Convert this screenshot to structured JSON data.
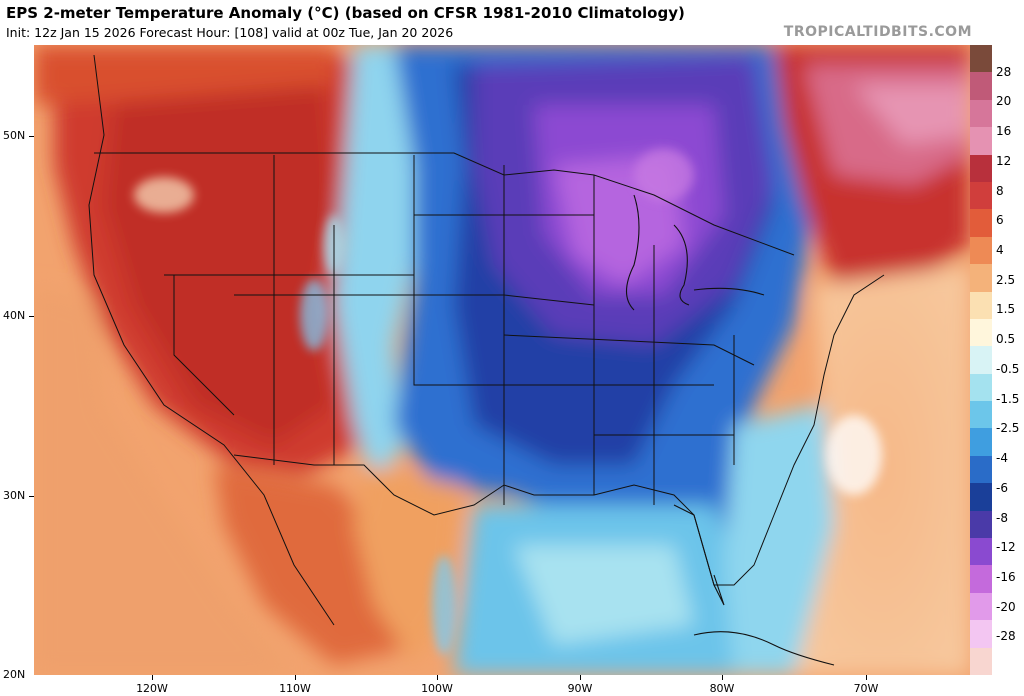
{
  "header": {
    "title": "EPS 2-meter Temperature Anomaly (°C) (based on CFSR 1981-2010 Climatology)",
    "subtitle": "Init: 12z Jan 15 2026   Forecast Hour: [108]   valid at 00z Tue, Jan 20 2026",
    "brand": "TROPICALTIDBITS.COM"
  },
  "map": {
    "lat_labels": [
      "50N",
      "40N",
      "30N",
      "20N"
    ],
    "lon_labels": [
      "120W",
      "110W",
      "100W",
      "90W",
      "80W",
      "70W"
    ],
    "region": "Continental United States, southern Canada, northern Mexico, Gulf of Mexico, western Atlantic"
  },
  "colorbar": {
    "labels": [
      "28",
      "20",
      "16",
      "12",
      "8",
      "6",
      "4",
      "2.5",
      "1.5",
      "0.5",
      "-0.5",
      "-1.5",
      "-2.5",
      "-4",
      "-6",
      "-8",
      "-12",
      "-16",
      "-20",
      "-28"
    ],
    "colors": [
      "#7a4a3a",
      "#c05a78",
      "#d6769a",
      "#e592b2",
      "#b8303c",
      "#d03e3c",
      "#e25c3a",
      "#ee8a55",
      "#f4b27a",
      "#fbe0b2",
      "#fff6dc",
      "#d8f3f5",
      "#a4e2ef",
      "#6cc6ea",
      "#3f9ee0",
      "#2a6cc8",
      "#1a3f99",
      "#4a3aa8",
      "#8a4ad0",
      "#c46adc",
      "#e19aea",
      "#f3c6f2",
      "#f8d6d0"
    ]
  },
  "colors": {
    "warm_strong": "#c9362e",
    "warm": "#e0683e",
    "warm_light": "#f2a06a",
    "neutral": "#fde7c4",
    "cool_light": "#a4e2ef",
    "cool": "#3f8fe0",
    "cool_strong": "#1f47a8",
    "cold_purple": "#6a48c8",
    "cold_magenta": "#b464de"
  }
}
